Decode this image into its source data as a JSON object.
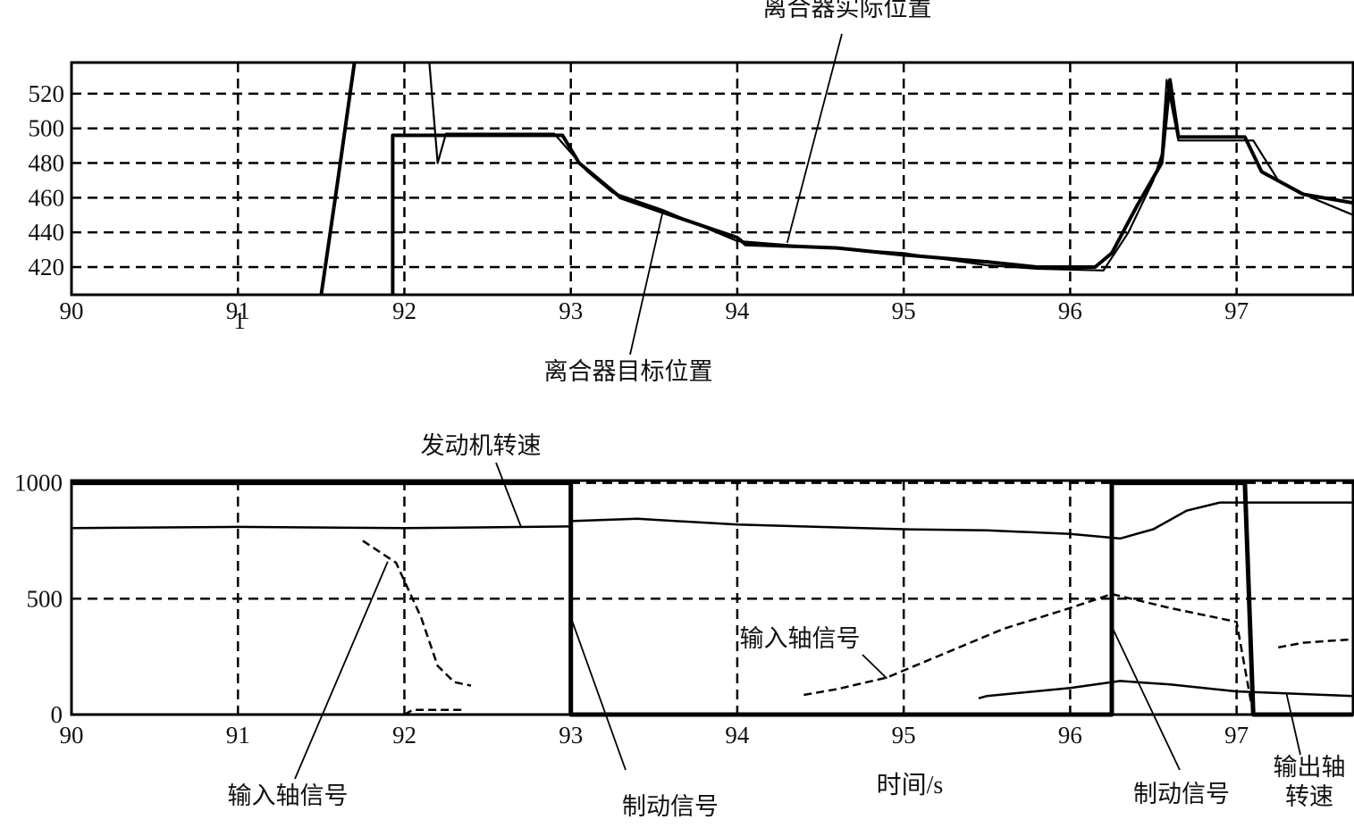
{
  "chart_data": [
    {
      "type": "line",
      "xlim": [
        90,
        97.7
      ],
      "ylim": [
        404,
        538
      ],
      "grid": true,
      "x_ticks": [
        {
          "v": 90,
          "label": "90"
        },
        {
          "v": 91,
          "label": "91"
        },
        {
          "v": 92,
          "label": "92"
        },
        {
          "v": 93,
          "label": "93"
        },
        {
          "v": 94,
          "label": "94"
        },
        {
          "v": 95,
          "label": "95"
        },
        {
          "v": 96,
          "label": "96"
        },
        {
          "v": 97,
          "label": "97"
        }
      ],
      "y_ticks": [
        {
          "v": 520,
          "label": "520"
        },
        {
          "v": 500,
          "label": "500"
        },
        {
          "v": 480,
          "label": "480"
        },
        {
          "v": 460,
          "label": "460"
        },
        {
          "v": 440,
          "label": "440"
        },
        {
          "v": 420,
          "label": "420"
        }
      ],
      "extra_label": "1",
      "series": [
        {
          "name": "离合器目标位置",
          "points": [
            [
              91.5,
              404
            ],
            [
              91.6,
              470
            ],
            [
              91.7,
              538
            ],
            null,
            [
              91.93,
              404
            ],
            [
              91.93,
              496
            ],
            [
              92.95,
              496
            ],
            [
              93.05,
              480
            ],
            [
              93.3,
              460
            ],
            [
              93.6,
              450
            ],
            [
              94.0,
              437
            ],
            [
              94.05,
              433
            ],
            [
              94.6,
              431
            ],
            [
              95.0,
              427
            ],
            [
              95.5,
              423
            ],
            [
              95.8,
              420
            ],
            [
              96.15,
              420
            ],
            [
              96.25,
              428
            ],
            [
              96.4,
              455
            ],
            [
              96.55,
              480
            ],
            [
              96.6,
              528
            ],
            [
              96.65,
              495
            ],
            [
              97.05,
              495
            ],
            [
              97.15,
              475
            ],
            [
              97.4,
              462
            ],
            [
              97.7,
              457
            ]
          ]
        },
        {
          "name": "离合器实际位置",
          "points": [
            [
              92.15,
              538
            ],
            [
              92.2,
              480
            ],
            [
              92.25,
              497
            ],
            [
              92.9,
              497
            ],
            [
              93.1,
              475
            ],
            [
              93.25,
              463
            ],
            [
              93.55,
              453
            ],
            [
              94.0,
              435
            ],
            [
              94.4,
              432
            ],
            [
              95.0,
              428
            ],
            [
              95.5,
              421
            ],
            [
              95.8,
              419
            ],
            [
              96.2,
              418
            ],
            [
              96.35,
              440
            ],
            [
              96.5,
              470
            ],
            [
              96.55,
              485
            ],
            [
              96.58,
              528
            ],
            [
              96.65,
              493
            ],
            [
              97.1,
              493
            ],
            [
              97.25,
              470
            ],
            [
              97.45,
              460
            ],
            [
              97.7,
              450
            ]
          ]
        }
      ],
      "annotations": [
        {
          "text": "离合器实际位置",
          "target": [
            94.3,
            434
          ]
        },
        {
          "text": "离合器目标位置",
          "target": [
            93.55,
            451
          ]
        }
      ]
    },
    {
      "type": "line",
      "xlim": [
        90,
        97.7
      ],
      "ylim": [
        0,
        1010
      ],
      "grid": true,
      "x_ticks": [
        {
          "v": 90,
          "label": "90"
        },
        {
          "v": 91,
          "label": "91"
        },
        {
          "v": 92,
          "label": "92"
        },
        {
          "v": 93,
          "label": "93"
        },
        {
          "v": 94,
          "label": "94"
        },
        {
          "v": 95,
          "label": "95"
        },
        {
          "v": 96,
          "label": "96"
        },
        {
          "v": 97,
          "label": "97"
        }
      ],
      "y_ticks": [
        {
          "v": 1000,
          "label": "1000"
        },
        {
          "v": 500,
          "label": "500"
        },
        {
          "v": 0,
          "label": "0"
        }
      ],
      "xlabel": "时间/s",
      "series": [
        {
          "name": "发动机转速",
          "points": [
            [
              90,
              805
            ],
            [
              91,
              810
            ],
            [
              92,
              805
            ],
            [
              92.5,
              808
            ],
            [
              93,
              812
            ],
            [
              93.0,
              835
            ],
            [
              93.4,
              845
            ],
            [
              94,
              820
            ],
            [
              95,
              800
            ],
            [
              95.5,
              795
            ],
            [
              96,
              780
            ],
            [
              96.3,
              760
            ],
            [
              96.5,
              800
            ],
            [
              96.7,
              880
            ],
            [
              96.9,
              915
            ],
            [
              97.7,
              915
            ]
          ]
        },
        {
          "name": "制动信号",
          "points": [
            [
              90,
              1000
            ],
            [
              93,
              1000
            ],
            [
              93,
              0
            ],
            [
              96.25,
              0
            ],
            [
              96.25,
              1000
            ],
            [
              97.05,
              1000
            ],
            [
              97.1,
              0
            ],
            [
              97.7,
              0
            ]
          ]
        },
        {
          "name": "输出轴转速",
          "points": [
            [
              95.45,
              70
            ],
            [
              95.5,
              80
            ],
            [
              96.0,
              115
            ],
            [
              96.3,
              145
            ],
            [
              96.6,
              130
            ],
            [
              97.0,
              100
            ],
            [
              97.7,
              80
            ]
          ]
        },
        {
          "name": "输入轴信号",
          "points": [
            [
              91.75,
              750
            ],
            [
              91.95,
              655
            ],
            [
              92.1,
              420
            ],
            [
              92.2,
              210
            ],
            [
              92.3,
              140
            ],
            [
              92.4,
              125
            ],
            null,
            [
              92.0,
              0
            ],
            [
              92.05,
              20
            ],
            [
              92.35,
              20
            ],
            null,
            [
              94.4,
              85
            ],
            [
              94.6,
              110
            ],
            [
              94.9,
              160
            ],
            [
              95.2,
              250
            ],
            [
              95.6,
              370
            ],
            [
              96.0,
              460
            ],
            [
              96.25,
              520
            ],
            [
              96.6,
              460
            ],
            [
              97.0,
              400
            ],
            [
              97.1,
              0
            ],
            null,
            [
              97.25,
              290
            ],
            [
              97.4,
              310
            ],
            [
              97.6,
              320
            ],
            [
              97.7,
              325
            ]
          ]
        }
      ],
      "annotations": [
        {
          "text": "发动机转速",
          "target": [
            92.7,
            812
          ]
        },
        {
          "text": "输入轴信号",
          "target": [
            91.9,
            660
          ]
        },
        {
          "text": "输入轴信号",
          "target": [
            94.9,
            155
          ]
        },
        {
          "text": "制动信号",
          "target": [
            93.0,
            420
          ]
        },
        {
          "text": "制动信号",
          "target": [
            96.25,
            380
          ]
        },
        {
          "text": "输出轴转速",
          "target": [
            97.3,
            90
          ]
        }
      ]
    }
  ]
}
